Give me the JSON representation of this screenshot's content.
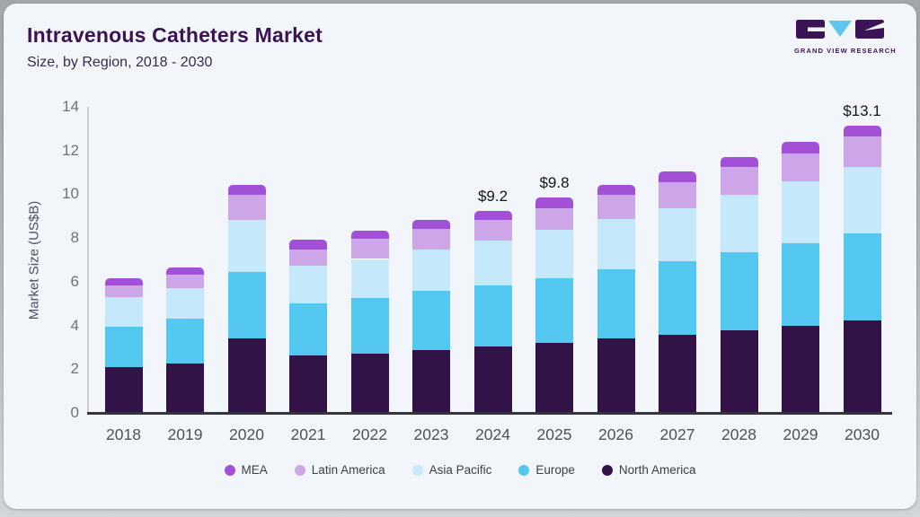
{
  "header": {
    "title": "Intravenous Catheters Market",
    "subtitle": "Size, by Region, 2018 - 2030",
    "logo_text": "GRAND VIEW RESEARCH"
  },
  "colors": {
    "title": "#3a1353",
    "card_bg": "#f2f5f9",
    "logo_block": "#3a1454",
    "logo_triangle": "#5ec6ee"
  },
  "chart_data": {
    "type": "bar",
    "stacked": true,
    "title": "Intravenous Catheters Market",
    "subtitle": "Size, by Region, 2018 - 2030",
    "xlabel": "",
    "ylabel": "Market Size (US$B)",
    "ylim": [
      0,
      14
    ],
    "yticks": [
      0,
      2,
      4,
      6,
      8,
      10,
      12,
      14
    ],
    "grid": false,
    "legend_position": "bottom",
    "legend_order": [
      "MEA",
      "Latin America",
      "Asia Pacific",
      "Europe",
      "North America"
    ],
    "categories": [
      "2018",
      "2019",
      "2020",
      "2021",
      "2022",
      "2023",
      "2024",
      "2025",
      "2026",
      "2027",
      "2028",
      "2029",
      "2030"
    ],
    "series": [
      {
        "name": "North America",
        "color": "#321348",
        "values": [
          2.05,
          2.2,
          3.35,
          2.6,
          2.67,
          2.85,
          3.0,
          3.15,
          3.35,
          3.52,
          3.72,
          3.94,
          4.17
        ]
      },
      {
        "name": "Europe",
        "color": "#55c8f2",
        "values": [
          1.85,
          2.05,
          3.05,
          2.37,
          2.56,
          2.69,
          2.8,
          2.97,
          3.18,
          3.39,
          3.57,
          3.76,
          4.0
        ]
      },
      {
        "name": "Asia Pacific",
        "color": "#c5e9fa",
        "values": [
          1.35,
          1.4,
          2.4,
          1.72,
          1.77,
          1.88,
          2.05,
          2.2,
          2.29,
          2.42,
          2.66,
          2.86,
          3.04
        ]
      },
      {
        "name": "Latin America",
        "color": "#cda6e8",
        "values": [
          0.55,
          0.65,
          1.15,
          0.74,
          0.92,
          0.95,
          0.92,
          1.01,
          1.1,
          1.16,
          1.24,
          1.28,
          1.4
        ]
      },
      {
        "name": "MEA",
        "color": "#a251d6",
        "values": [
          0.3,
          0.3,
          0.45,
          0.45,
          0.37,
          0.42,
          0.43,
          0.47,
          0.45,
          0.51,
          0.47,
          0.5,
          0.49
        ]
      }
    ],
    "totals_labeled": [
      {
        "category": "2024",
        "label": "$9.2"
      },
      {
        "category": "2025",
        "label": "$9.8"
      },
      {
        "category": "2030",
        "label": "$13.1"
      }
    ]
  }
}
